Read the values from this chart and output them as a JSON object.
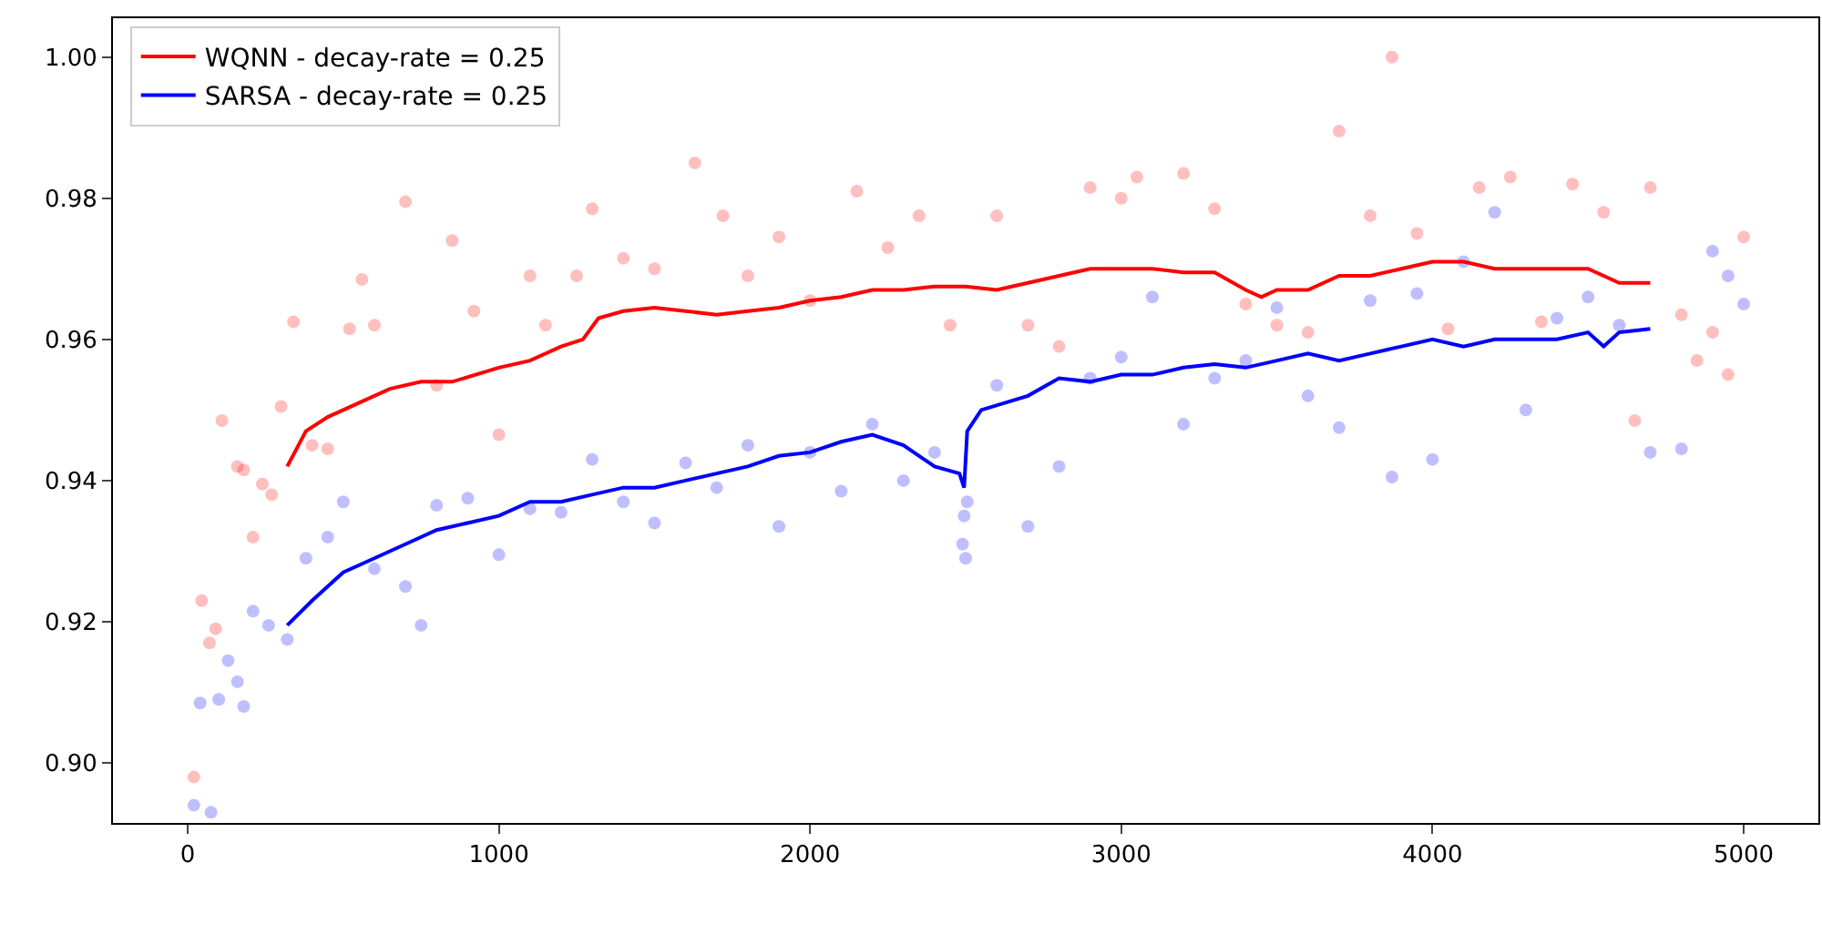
{
  "chart_data": {
    "type": "scatter",
    "xlim": [
      -240,
      5240
    ],
    "ylim": [
      0.8915,
      1.0055
    ],
    "xticks": [
      0,
      1000,
      2000,
      3000,
      4000,
      5000
    ],
    "yticks": [
      {
        "value": 0.9,
        "label": "0.90"
      },
      {
        "value": 0.92,
        "label": "0.92"
      },
      {
        "value": 0.94,
        "label": "0.94"
      },
      {
        "value": 0.96,
        "label": "0.96"
      },
      {
        "value": 0.98,
        "label": "0.98"
      },
      {
        "value": 1.0,
        "label": "1.00"
      }
    ],
    "legend": "top left",
    "series": [
      {
        "marker": "circle",
        "color": "#ff0000",
        "x": [
          20,
          45,
          70,
          90,
          110,
          160,
          180,
          210,
          240,
          270,
          300,
          340,
          400,
          450,
          520,
          560,
          600,
          700,
          800,
          850,
          920,
          1000,
          1100,
          1150,
          1250,
          1300,
          1400,
          1500,
          1630,
          1720,
          1800,
          1900,
          2000,
          2150,
          2250,
          2350,
          2450,
          2600,
          2700,
          2800,
          2900,
          3000,
          3050,
          3200,
          3300,
          3400,
          3500,
          3600,
          3700,
          3800,
          3870,
          3950,
          4050,
          4150,
          4250,
          4350,
          4450,
          4550,
          4650,
          4700,
          4800,
          4850,
          4900,
          4950,
          5000
        ],
        "values": [
          0.898,
          0.923,
          0.917,
          0.919,
          0.9485,
          0.942,
          0.9415,
          0.932,
          0.9395,
          0.938,
          0.9505,
          0.9625,
          0.945,
          0.9445,
          0.9615,
          0.9685,
          0.962,
          0.9795,
          0.9535,
          0.974,
          0.964,
          0.9465,
          0.969,
          0.962,
          0.969,
          0.9785,
          0.9715,
          0.97,
          0.985,
          0.9775,
          0.969,
          0.9745,
          0.9655,
          0.981,
          0.973,
          0.9775,
          0.962,
          0.9775,
          0.962,
          0.959,
          0.9815,
          0.98,
          0.983,
          0.9835,
          0.9785,
          0.965,
          0.962,
          0.961,
          0.9895,
          0.9775,
          1.0,
          0.975,
          0.9615,
          0.9815,
          0.983,
          0.9625,
          0.982,
          0.978,
          0.9485,
          0.9815,
          0.9635,
          0.957,
          0.961,
          0.955,
          0.9745
        ]
      },
      {
        "marker": "circle",
        "color": "#0000ff",
        "x": [
          20,
          40,
          75,
          100,
          130,
          160,
          180,
          210,
          260,
          320,
          380,
          450,
          500,
          600,
          700,
          750,
          800,
          900,
          1000,
          1100,
          1200,
          1300,
          1400,
          1500,
          1600,
          1700,
          1800,
          1900,
          2000,
          2100,
          2200,
          2300,
          2400,
          2490,
          2495,
          2500,
          2505,
          2600,
          2700,
          2800,
          2900,
          3000,
          3100,
          3200,
          3300,
          3400,
          3500,
          3600,
          3700,
          3800,
          3870,
          3950,
          4000,
          4100,
          4200,
          4300,
          4400,
          4500,
          4600,
          4700,
          4800,
          4900,
          4950,
          5000
        ],
        "values": [
          0.894,
          0.9085,
          0.893,
          0.909,
          0.9145,
          0.9115,
          0.908,
          0.9215,
          0.9195,
          0.9175,
          0.929,
          0.932,
          0.937,
          0.9275,
          0.925,
          0.9195,
          0.9365,
          0.9375,
          0.9295,
          0.936,
          0.9355,
          0.943,
          0.937,
          0.934,
          0.9425,
          0.939,
          0.945,
          0.9335,
          0.944,
          0.9385,
          0.948,
          0.94,
          0.944,
          0.931,
          0.935,
          0.929,
          0.937,
          0.9535,
          0.9335,
          0.942,
          0.9545,
          0.9575,
          0.966,
          0.948,
          0.9545,
          0.957,
          0.9645,
          0.952,
          0.9475,
          0.9655,
          0.9405,
          0.9665,
          0.943,
          0.971,
          0.978,
          0.95,
          0.963,
          0.966,
          0.962,
          0.944,
          0.9445,
          0.9725,
          0.969,
          0.965
        ]
      },
      {
        "type": "line",
        "marker": "none",
        "name": "WQNN - decay-rate = 0.25",
        "color": "#ff0000",
        "x": [
          320,
          380,
          450,
          550,
          650,
          750,
          850,
          1000,
          1100,
          1200,
          1270,
          1320,
          1400,
          1500,
          1600,
          1700,
          1800,
          1900,
          2000,
          2100,
          2200,
          2300,
          2400,
          2500,
          2600,
          2700,
          2800,
          2900,
          3000,
          3100,
          3200,
          3300,
          3400,
          3450,
          3500,
          3600,
          3700,
          3800,
          3900,
          4000,
          4100,
          4200,
          4300,
          4400,
          4500,
          4600,
          4700
        ],
        "values": [
          0.942,
          0.947,
          0.949,
          0.951,
          0.953,
          0.954,
          0.954,
          0.956,
          0.957,
          0.959,
          0.96,
          0.963,
          0.964,
          0.9645,
          0.964,
          0.9635,
          0.964,
          0.9645,
          0.9655,
          0.966,
          0.967,
          0.967,
          0.9675,
          0.9675,
          0.967,
          0.968,
          0.969,
          0.97,
          0.97,
          0.97,
          0.9695,
          0.9695,
          0.967,
          0.966,
          0.967,
          0.967,
          0.969,
          0.969,
          0.97,
          0.971,
          0.971,
          0.97,
          0.97,
          0.97,
          0.97,
          0.968,
          0.968
        ]
      },
      {
        "type": "line",
        "marker": "none",
        "name": "SARSA - decay-rate = 0.25",
        "color": "#0000ff",
        "x": [
          320,
          400,
          500,
          600,
          700,
          800,
          900,
          1000,
          1100,
          1200,
          1300,
          1400,
          1500,
          1600,
          1700,
          1800,
          1900,
          2000,
          2100,
          2200,
          2300,
          2400,
          2480,
          2495,
          2505,
          2550,
          2700,
          2800,
          2900,
          3000,
          3100,
          3200,
          3300,
          3400,
          3500,
          3600,
          3700,
          3800,
          3900,
          4000,
          4100,
          4200,
          4300,
          4400,
          4500,
          4550,
          4600,
          4700
        ],
        "values": [
          0.9195,
          0.923,
          0.927,
          0.929,
          0.931,
          0.933,
          0.934,
          0.935,
          0.937,
          0.937,
          0.938,
          0.939,
          0.939,
          0.94,
          0.941,
          0.942,
          0.9435,
          0.944,
          0.9455,
          0.9465,
          0.945,
          0.942,
          0.941,
          0.939,
          0.947,
          0.95,
          0.952,
          0.9545,
          0.954,
          0.955,
          0.955,
          0.956,
          0.9565,
          0.956,
          0.957,
          0.958,
          0.957,
          0.958,
          0.959,
          0.96,
          0.959,
          0.96,
          0.96,
          0.96,
          0.961,
          0.959,
          0.961,
          0.9615
        ]
      }
    ]
  }
}
